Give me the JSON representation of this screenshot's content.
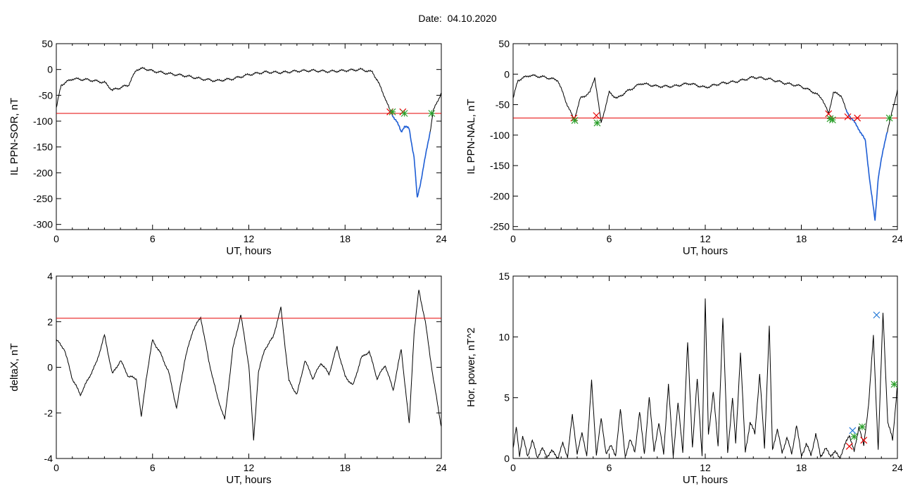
{
  "header": {
    "date_label": "Date:",
    "date_value": "04.10.2020"
  },
  "colors": {
    "axis": "#000000",
    "trace": "#000000",
    "threshold": "#e60000",
    "highlight": "#1f5fd6",
    "marker_red": "#e60000",
    "marker_green": "#2ca02c",
    "marker_blue": "#1f77d6"
  },
  "chart_data": [
    {
      "id": "sor",
      "type": "line",
      "xlabel": "UT, hours",
      "ylabel": "IL PPN-SOR, nT",
      "xlim": [
        0,
        24
      ],
      "ylim": [
        -310,
        50
      ],
      "xticks": [
        0,
        6,
        12,
        18,
        24
      ],
      "yticks": [
        50,
        0,
        -50,
        -100,
        -150,
        -200,
        -250,
        -300
      ],
      "threshold": -85,
      "series": [
        {
          "x": [
            0,
            0.3,
            1,
            2,
            3,
            3.5,
            4,
            4.5,
            5,
            5.5,
            6,
            7,
            8,
            9,
            10,
            11,
            12,
            13,
            14,
            15,
            16,
            17,
            18,
            19,
            19.7,
            20,
            20.5,
            20.8,
            21,
            21.2,
            21.5,
            21.7,
            22,
            22.3,
            22.5,
            22.7,
            23,
            23.3,
            23.5,
            24
          ],
          "y": [
            -75,
            -30,
            -18,
            -20,
            -25,
            -40,
            -35,
            -30,
            0,
            2,
            -3,
            -8,
            -12,
            -18,
            -22,
            -18,
            -10,
            -5,
            -6,
            -3,
            -2,
            -4,
            -2,
            0,
            -5,
            -20,
            -55,
            -80,
            -90,
            -100,
            -120,
            -110,
            -115,
            -170,
            -250,
            -220,
            -170,
            -120,
            -80,
            -45
          ]
        }
      ],
      "highlight_x": [
        20.8,
        23.3
      ],
      "markers": [
        {
          "x": 20.8,
          "y": -82,
          "color": "red"
        },
        {
          "x": 20.95,
          "y": -82,
          "color": "green"
        },
        {
          "x": 21.6,
          "y": -82,
          "color": "red"
        },
        {
          "x": 21.7,
          "y": -85,
          "color": "green"
        },
        {
          "x": 23.4,
          "y": -85,
          "color": "green"
        }
      ]
    },
    {
      "id": "nal",
      "type": "line",
      "xlabel": "UT, hours",
      "ylabel": "IL PPN-NAL, nT",
      "xlim": [
        0,
        24
      ],
      "ylim": [
        -255,
        50
      ],
      "xticks": [
        0,
        6,
        12,
        18,
        24
      ],
      "yticks": [
        50,
        0,
        -50,
        -100,
        -150,
        -200,
        -250
      ],
      "threshold": -72,
      "series": [
        {
          "x": [
            0,
            0.3,
            1,
            2,
            2.8,
            3.3,
            3.8,
            4.2,
            4.8,
            5.1,
            5.5,
            6,
            6.5,
            7,
            8,
            9,
            10,
            11,
            12,
            13,
            14,
            15,
            16,
            17,
            18,
            18.8,
            19.3,
            19.7,
            20,
            20.5,
            20.8,
            21.2,
            21.6,
            22,
            22.3,
            22.6,
            22.8,
            23,
            23.3,
            23.6,
            24
          ],
          "y": [
            -40,
            -10,
            -2,
            -5,
            -10,
            -45,
            -75,
            -40,
            -30,
            -5,
            -80,
            -30,
            -40,
            -30,
            -15,
            -20,
            -20,
            -15,
            -22,
            -15,
            -12,
            -5,
            -8,
            -15,
            -20,
            -30,
            -40,
            -65,
            -30,
            -35,
            -60,
            -75,
            -90,
            -110,
            -180,
            -240,
            -170,
            -140,
            -100,
            -70,
            -25
          ]
        }
      ],
      "highlight_x": [
        20.8,
        23.4
      ],
      "markers": [
        {
          "x": 3.8,
          "y": -72,
          "color": "red"
        },
        {
          "x": 3.85,
          "y": -76,
          "color": "green"
        },
        {
          "x": 5.2,
          "y": -68,
          "color": "red"
        },
        {
          "x": 5.25,
          "y": -80,
          "color": "green"
        },
        {
          "x": 19.7,
          "y": -65,
          "color": "red"
        },
        {
          "x": 19.8,
          "y": -73,
          "color": "green"
        },
        {
          "x": 19.95,
          "y": -75,
          "color": "green"
        },
        {
          "x": 20.9,
          "y": -70,
          "color": "red"
        },
        {
          "x": 21.5,
          "y": -72,
          "color": "red"
        },
        {
          "x": 23.5,
          "y": -72,
          "color": "green"
        }
      ]
    },
    {
      "id": "deltax",
      "type": "line",
      "xlabel": "UT, hours",
      "ylabel": "deltaX, nT",
      "xlim": [
        0,
        24
      ],
      "ylim": [
        -4,
        4
      ],
      "xticks": [
        0,
        6,
        12,
        18,
        24
      ],
      "yticks": [
        4,
        2,
        0,
        -2,
        -4
      ],
      "threshold": 2.15,
      "series": [
        {
          "x": [
            0,
            0.5,
            1,
            1.5,
            2,
            2.5,
            3,
            3.5,
            4,
            4.5,
            5,
            5.3,
            5.6,
            6,
            6.5,
            7,
            7.5,
            8,
            8.5,
            9,
            9.5,
            10,
            10.5,
            11,
            11.5,
            12,
            12.3,
            12.6,
            13,
            13.5,
            14,
            14.5,
            15,
            15.5,
            16,
            16.5,
            17,
            17.5,
            18,
            18.5,
            19,
            19.5,
            20,
            20.5,
            21,
            21.5,
            22,
            22.3,
            22.6,
            23,
            23.5,
            24
          ],
          "y": [
            1.2,
            0.8,
            -0.5,
            -1.2,
            -0.5,
            0.2,
            1.4,
            -0.3,
            0.3,
            -0.4,
            -0.5,
            -2.2,
            -0.5,
            1.2,
            0.6,
            -0.2,
            -1.8,
            0.3,
            1.6,
            2.2,
            0.3,
            -1.2,
            -2.3,
            0.8,
            2.3,
            0.1,
            -3.2,
            -0.2,
            0.8,
            1.3,
            2.6,
            -0.6,
            -1.2,
            0.3,
            -0.5,
            0.2,
            -0.3,
            0.9,
            -0.4,
            -0.8,
            0.4,
            0.7,
            -0.5,
            0.1,
            -1.0,
            0.8,
            -2.5,
            1.5,
            3.4,
            2.0,
            -0.5,
            -2.6
          ]
        }
      ]
    },
    {
      "id": "power",
      "type": "line",
      "xlabel": "UT, hours",
      "ylabel": "Hor. power, nT^2",
      "xlim": [
        0,
        24
      ],
      "ylim": [
        0,
        15
      ],
      "xticks": [
        0,
        6,
        12,
        18,
        24
      ],
      "yticks": [
        15,
        10,
        5,
        0
      ],
      "series": [
        {
          "x": [
            0,
            0.2,
            0.4,
            0.6,
            0.9,
            1.2,
            1.5,
            1.8,
            2.1,
            2.4,
            2.8,
            3.1,
            3.4,
            3.7,
            4.0,
            4.3,
            4.6,
            4.9,
            5.2,
            5.5,
            5.8,
            6.1,
            6.4,
            6.7,
            7.0,
            7.3,
            7.6,
            7.9,
            8.2,
            8.5,
            8.8,
            9.1,
            9.4,
            9.7,
            10.0,
            10.3,
            10.6,
            10.9,
            11.2,
            11.5,
            11.8,
            12.0,
            12.2,
            12.5,
            12.8,
            13.1,
            13.4,
            13.7,
            13.9,
            14.2,
            14.5,
            14.8,
            15.1,
            15.4,
            15.7,
            16.0,
            16.2,
            16.5,
            16.8,
            17.1,
            17.4,
            17.7,
            18.0,
            18.3,
            18.6,
            18.9,
            19.2,
            19.5,
            19.8,
            20.1,
            20.4,
            20.7,
            21.0,
            21.3,
            21.6,
            21.9,
            22.2,
            22.5,
            22.8,
            23.1,
            23.4,
            23.7,
            24
          ],
          "y": [
            0.8,
            2.5,
            0.3,
            1.8,
            0.2,
            1.5,
            0.1,
            0.8,
            0.2,
            0.6,
            0.1,
            1.2,
            0.2,
            3.5,
            0.5,
            2.0,
            0.3,
            6.3,
            0.4,
            3.2,
            0.5,
            1.0,
            0.3,
            4.0,
            0.2,
            1.5,
            0.6,
            3.8,
            0.4,
            5.0,
            0.7,
            2.8,
            0.5,
            6.0,
            0.3,
            4.5,
            0.6,
            9.5,
            1.0,
            6.5,
            0.3,
            13.0,
            2.0,
            5.5,
            1.0,
            11.6,
            0.5,
            5.0,
            1.2,
            8.8,
            0.5,
            3.0,
            2.0,
            7.0,
            0.8,
            11.0,
            0.6,
            2.5,
            0.4,
            1.8,
            0.3,
            2.8,
            0.2,
            1.2,
            0.3,
            2.0,
            0.2,
            0.8,
            0.3,
            0.5,
            0.1,
            1.0,
            2.0,
            0.5,
            2.7,
            1.0,
            4.5,
            10.0,
            0.8,
            12.0,
            3.0,
            1.5,
            6.1
          ]
        }
      ],
      "markers": [
        {
          "x": 21.0,
          "y": 1.0,
          "color": "red"
        },
        {
          "x": 21.2,
          "y": 2.3,
          "color": "blue"
        },
        {
          "x": 21.3,
          "y": 1.8,
          "color": "green"
        },
        {
          "x": 21.8,
          "y": 2.6,
          "color": "green"
        },
        {
          "x": 21.9,
          "y": 1.5,
          "color": "red"
        },
        {
          "x": 22.7,
          "y": 11.8,
          "color": "blue"
        },
        {
          "x": 23.8,
          "y": 6.1,
          "color": "green"
        }
      ]
    }
  ]
}
